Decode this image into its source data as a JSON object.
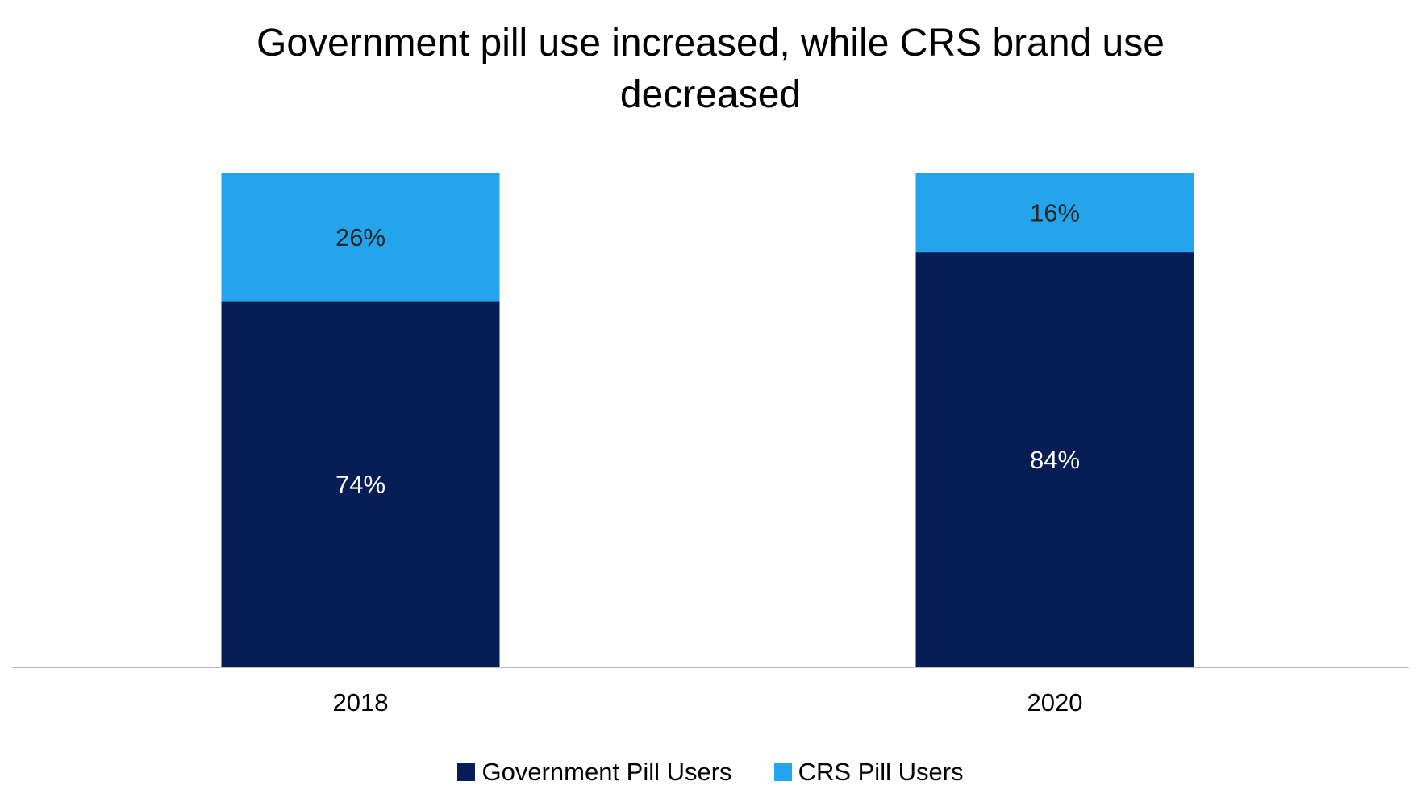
{
  "chart_data": {
    "type": "bar",
    "stacked": true,
    "title_lines": [
      "Government pill use increased, while CRS brand use",
      "decreased"
    ],
    "categories": [
      "2018",
      "2020"
    ],
    "series": [
      {
        "name": "Government Pill Users",
        "values": [
          74,
          84
        ],
        "labels": [
          "74%",
          "84%"
        ],
        "color": "#061E55",
        "label_color": "#FFFFFF"
      },
      {
        "name": "CRS Pill Users",
        "values": [
          26,
          16
        ],
        "labels": [
          "26%",
          "16%"
        ],
        "color": "#24A4EC",
        "label_color": "#262626"
      }
    ],
    "ylim": [
      0,
      100
    ],
    "grid": false,
    "legend_position": "bottom",
    "axis_color": "#BFBFBF"
  }
}
